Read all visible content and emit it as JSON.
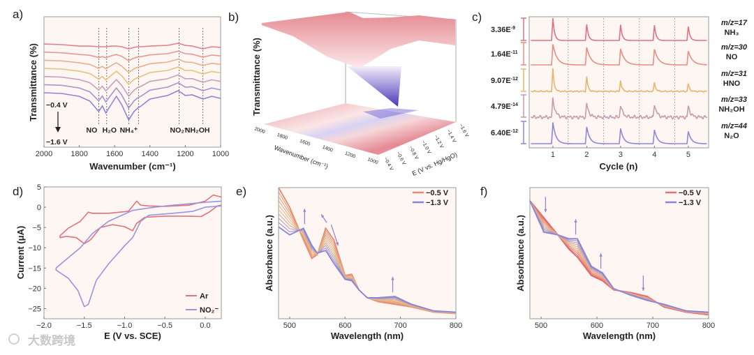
{
  "watermark": "大数跨境",
  "colors": {
    "red": "#e4707a",
    "orange": "#e9b27a",
    "purple": "#8a84d8",
    "bg": "#fdf6f2"
  },
  "chart_data": [
    {
      "panel": "a)",
      "type": "line",
      "xlabel": "Wavenumber (cm⁻¹)",
      "ylabel": "Transmittance (%)",
      "xlim": [
        2000,
        1000
      ],
      "xticks": [
        2000,
        1800,
        1600,
        1400,
        1200,
        1000
      ],
      "potential_top": "−0.4 V",
      "potential_bottom": "−1.6 V",
      "n_curves": 7,
      "curve_colors": [
        "#e3808c",
        "#e59a92",
        "#e8b08a",
        "#e9c07a",
        "#c9a0b8",
        "#a594cf",
        "#8a86d6"
      ],
      "x": [
        2000,
        1900,
        1800,
        1740,
        1690,
        1670,
        1650,
        1620,
        1590,
        1560,
        1520,
        1490,
        1470,
        1450,
        1400,
        1300,
        1240,
        1200,
        1160,
        1100,
        1050,
        1000
      ],
      "series": [
        {
          "name": "−0.4 V",
          "values": [
            79.1,
            78.6,
            77.5,
            77.5,
            77.0,
            77.0,
            77.0,
            77.5,
            77.5,
            77.0,
            75.4,
            76.5,
            77.0,
            77.0,
            77.5,
            78.1,
            79.7,
            78.1,
            77.5,
            75.4,
            77.0,
            76.5
          ]
        },
        {
          "name": "−1.6 V",
          "values": [
            41.7,
            41.2,
            39.0,
            35.3,
            27.3,
            31.6,
            26.2,
            32.6,
            39.0,
            32.6,
            20.9,
            27.3,
            29.9,
            31.6,
            36.9,
            39.6,
            43.3,
            39.6,
            40.1,
            36.9,
            39.0,
            37.4
          ]
        }
      ],
      "markers": [
        {
          "x": 1690,
          "label": "NO"
        },
        {
          "x": 1645,
          "label": "H₂O"
        },
        {
          "x": 1520,
          "label": "NH₄⁺"
        },
        {
          "x": 1465,
          "label": ""
        },
        {
          "x": 1235,
          "label": "NO₂⁻"
        },
        {
          "x": 1100,
          "label": "NH₂OH"
        }
      ]
    },
    {
      "panel": "b)",
      "type": "surface",
      "zlabel": "Transmittance (%)",
      "xlabel": "Wavenumber (cm⁻¹)",
      "ylabel": "E (V vs. Hg/HgO)",
      "xticks": [
        "2000",
        "1800",
        "1600",
        "1400",
        "1200",
        "1000"
      ],
      "yticks": [
        "−0.4 V",
        "−0.6 V",
        "−0.8 V",
        "−1.0 V",
        "−1.2 V",
        "−1.4 V",
        "−1.6 V"
      ]
    },
    {
      "panel": "c)",
      "type": "line",
      "xlabel": "Cycle (n)",
      "xlim": [
        0.3,
        5.6
      ],
      "xticks": [
        1,
        2,
        3,
        4,
        5
      ],
      "dividers": [
        1.45,
        2.5,
        3.55,
        4.6
      ],
      "rows": [
        {
          "scale": "3.36E",
          "exp": "-9",
          "mz": "m/z=17",
          "species": "NH₃",
          "color": "#e3707e",
          "peaks": [
            1.0,
            0.72,
            0.7,
            0.68,
            0.62
          ],
          "decay": 0.05,
          "noise": 0
        },
        {
          "scale": "1.64E",
          "exp": "-11",
          "mz": "m/z=30",
          "species": "NO",
          "color": "#e88e7e",
          "peaks": [
            0.92,
            0.78,
            0.72,
            0.7,
            0.62
          ],
          "decay": 0.12,
          "noise": 0
        },
        {
          "scale": "9.07E",
          "exp": "-12",
          "mz": "m/z=31",
          "species": "HNO",
          "color": "#e9b46a",
          "peaks": [
            1.0,
            0.65,
            0.5,
            0.42,
            0.35
          ],
          "decay": 0.04,
          "noise": 0.03
        },
        {
          "scale": "4.79E",
          "exp": "-14",
          "mz": "m/z=33",
          "species": "NH₂OH",
          "color": "#c79aae",
          "peaks": [
            0.85,
            0.6,
            0.55,
            0.6,
            0.5
          ],
          "decay": 0.07,
          "noise": 0.08
        },
        {
          "scale": "6.40E",
          "exp": "-12",
          "mz": "m/z=44",
          "species": "N₂O",
          "color": "#8e86d8",
          "peaks": [
            0.95,
            0.75,
            0.68,
            0.62,
            0.55
          ],
          "decay": 0.09,
          "noise": 0
        }
      ]
    },
    {
      "panel": "d)",
      "type": "line",
      "xlabel": "E (V vs. SCE)",
      "ylabel": "Current (μA)",
      "xlim": [
        -2.0,
        0.2
      ],
      "ylim": [
        -27.5,
        5
      ],
      "xticks": [
        -2.0,
        -1.5,
        -1.0,
        -0.5,
        0.0
      ],
      "xtick_labels": [
        "−2.0",
        "−1.5",
        "−1.0",
        "−0.5",
        "0.0"
      ],
      "yticks": [
        5,
        0,
        -5,
        -10,
        -15,
        -20,
        -25
      ],
      "ytick_labels": [
        "5",
        "0",
        "−5",
        "−10",
        "−15",
        "−20",
        "−25"
      ],
      "legend": [
        {
          "name": "Ar",
          "color": "#e4707a"
        },
        {
          "name": "NO₂⁻",
          "color": "#9a94e0"
        }
      ],
      "series": [
        {
          "name": "Ar",
          "points": [
            [
              0.2,
              2.5
            ],
            [
              0.1,
              3
            ],
            [
              0.0,
              1.5
            ],
            [
              -0.2,
              0.5
            ],
            [
              -0.5,
              0.2
            ],
            [
              -0.7,
              0.3
            ],
            [
              -0.8,
              0.5
            ],
            [
              -0.85,
              1.5
            ],
            [
              -0.95,
              -1.0
            ],
            [
              -1.2,
              -1.5
            ],
            [
              -1.4,
              -1.5
            ],
            [
              -1.45,
              -1.2
            ],
            [
              -1.55,
              -3.5
            ],
            [
              -1.7,
              -5.2
            ],
            [
              -1.8,
              -7
            ],
            [
              -1.8,
              -7.5
            ],
            [
              -1.72,
              -7.2
            ],
            [
              -1.6,
              -7.5
            ],
            [
              -1.5,
              -9
            ],
            [
              -1.42,
              -8
            ],
            [
              -1.3,
              -5
            ],
            [
              -1.15,
              -4.3
            ],
            [
              -1.0,
              -4.8
            ],
            [
              -0.9,
              -5.8
            ],
            [
              -0.85,
              -4
            ],
            [
              -0.75,
              -2.5
            ],
            [
              -0.5,
              -2.2
            ],
            [
              -0.2,
              -2.2
            ],
            [
              -0.05,
              -2.3
            ],
            [
              0.05,
              -1.2
            ],
            [
              0.15,
              0.3
            ],
            [
              0.2,
              0.5
            ]
          ]
        },
        {
          "name": "NO₂⁻",
          "points": [
            [
              0.2,
              1.5
            ],
            [
              0.0,
              1.2
            ],
            [
              -0.5,
              0.3
            ],
            [
              -0.7,
              -0.2
            ],
            [
              -0.9,
              -0.8
            ],
            [
              -1.2,
              -3.5
            ],
            [
              -1.4,
              -6.5
            ],
            [
              -1.55,
              -10
            ],
            [
              -1.7,
              -12.5
            ],
            [
              -1.85,
              -15
            ],
            [
              -1.85,
              -15.5
            ],
            [
              -1.7,
              -17.5
            ],
            [
              -1.58,
              -20.5
            ],
            [
              -1.5,
              -24.5
            ],
            [
              -1.45,
              -24
            ],
            [
              -1.35,
              -18
            ],
            [
              -1.2,
              -14
            ],
            [
              -1.0,
              -9.5
            ],
            [
              -0.9,
              -7.5
            ],
            [
              -0.8,
              -3.5
            ],
            [
              -0.7,
              -2.0
            ],
            [
              -0.4,
              -1.5
            ],
            [
              -0.15,
              -1.0
            ],
            [
              0.0,
              0
            ],
            [
              0.2,
              0.3
            ]
          ]
        }
      ]
    },
    {
      "panel": "e)",
      "type": "line",
      "xlabel": "Wavelength (nm)",
      "ylabel": "Absorbance (a.u.)",
      "xlim": [
        480,
        800
      ],
      "ylim": [
        0,
        1
      ],
      "xticks": [
        500,
        600,
        700,
        800
      ],
      "n_curves": 10,
      "legend": [
        {
          "name": "−0.5 V",
          "color": "#e88a78"
        },
        {
          "name": "−1.3 V",
          "color": "#8a84d8"
        }
      ],
      "x": [
        480,
        500,
        525,
        540,
        550,
        565,
        580,
        600,
        612,
        625,
        640,
        660,
        690,
        720,
        760,
        800
      ],
      "series": [
        {
          "name": "−0.5 V",
          "values": [
            1.0,
            0.85,
            0.6,
            0.46,
            0.49,
            0.69,
            0.6,
            0.33,
            0.34,
            0.22,
            0.16,
            0.13,
            0.11,
            0.09,
            0.05,
            0.04
          ]
        },
        {
          "name": "−1.3 V",
          "values": [
            0.7,
            0.64,
            0.69,
            0.56,
            0.5,
            0.52,
            0.42,
            0.3,
            0.29,
            0.22,
            0.16,
            0.16,
            0.17,
            0.11,
            0.06,
            0.05
          ]
        }
      ],
      "arrows": [
        {
          "x": 527,
          "dir": "up"
        },
        {
          "x": 562,
          "dir": "up-left"
        },
        {
          "x": 580,
          "dir": "down-right"
        },
        {
          "x": 686,
          "dir": "up"
        }
      ]
    },
    {
      "panel": "f)",
      "type": "line",
      "xlabel": "Wavelength (nm)",
      "ylabel": "Absorbance (a.u.)",
      "xlim": [
        480,
        800
      ],
      "ylim": [
        0,
        1
      ],
      "xticks": [
        500,
        600,
        700,
        800
      ],
      "n_curves": 10,
      "legend": [
        {
          "name": "−0.5 V",
          "color": "#e4707a"
        },
        {
          "name": "−1.3 V",
          "color": "#8a84d8"
        }
      ],
      "x": [
        480,
        505,
        530,
        550,
        565,
        590,
        610,
        630,
        660,
        690,
        720,
        760,
        800
      ],
      "series": [
        {
          "name": "−0.5 V",
          "values": [
            0.9,
            0.77,
            0.64,
            0.53,
            0.47,
            0.33,
            0.29,
            0.22,
            0.2,
            0.17,
            0.09,
            0.05,
            0.03
          ]
        },
        {
          "name": "−1.3 V",
          "values": [
            0.9,
            0.66,
            0.64,
            0.61,
            0.61,
            0.4,
            0.35,
            0.23,
            0.18,
            0.14,
            0.11,
            0.06,
            0.05
          ]
        }
      ],
      "arrows": [
        {
          "x": 508,
          "dir": "down"
        },
        {
          "x": 562,
          "dir": "up"
        },
        {
          "x": 607,
          "dir": "up"
        },
        {
          "x": 683,
          "dir": "down"
        }
      ]
    }
  ]
}
